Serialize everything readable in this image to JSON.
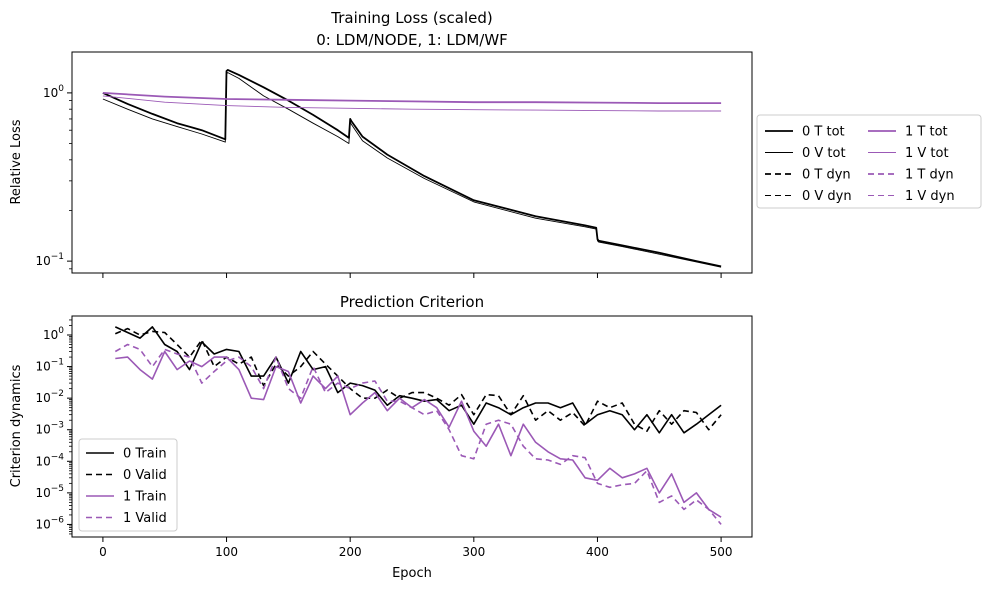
{
  "colors": {
    "black": "#000000",
    "purple": "#9b59b6",
    "axes": "#000000",
    "background": "#ffffff"
  },
  "chart_data": [
    {
      "type": "line",
      "title": "Training Loss (scaled)",
      "subtitle": "0: LDM/NODE, 1: LDM/WF",
      "xlabel": "",
      "ylabel": "Relative Loss",
      "yscale": "log",
      "xlim": [
        -25,
        525
      ],
      "ylim": [
        0.085,
        1.75
      ],
      "x_ticks": [
        0,
        100,
        200,
        300,
        400,
        500
      ],
      "x_tick_labels_shown": false,
      "y_ticks": [
        1,
        0.1
      ],
      "y_tick_labels": [
        "10^0",
        "10^-1"
      ],
      "grid": false,
      "legend": {
        "placement": "outside-right",
        "columns": 2
      },
      "series": [
        {
          "name": "0 T tot",
          "color": "#000000",
          "style": "solid",
          "width": 1.8,
          "x": [
            0,
            20,
            40,
            60,
            80,
            99,
            100,
            101,
            110,
            130,
            150,
            170,
            190,
            199,
            200,
            201,
            210,
            230,
            260,
            300,
            350,
            390,
            399,
            400,
            401,
            420,
            450,
            480,
            500
          ],
          "y": [
            1.0,
            0.86,
            0.75,
            0.66,
            0.6,
            0.53,
            1.35,
            1.37,
            1.28,
            1.08,
            0.9,
            0.74,
            0.6,
            0.54,
            0.7,
            0.68,
            0.55,
            0.43,
            0.32,
            0.23,
            0.185,
            0.163,
            0.158,
            0.135,
            0.132,
            0.124,
            0.112,
            0.1,
            0.093
          ]
        },
        {
          "name": "0 V tot",
          "color": "#000000",
          "style": "solid",
          "width": 0.9,
          "x": [
            0,
            20,
            40,
            60,
            80,
            99,
            100,
            101,
            110,
            130,
            150,
            170,
            190,
            199,
            200,
            201,
            210,
            230,
            260,
            300,
            350,
            390,
            399,
            400,
            401,
            420,
            450,
            480,
            500
          ],
          "y": [
            0.92,
            0.8,
            0.7,
            0.63,
            0.57,
            0.51,
            1.3,
            1.32,
            1.22,
            0.96,
            0.8,
            0.66,
            0.55,
            0.5,
            0.67,
            0.65,
            0.52,
            0.41,
            0.31,
            0.225,
            0.18,
            0.16,
            0.155,
            0.132,
            0.13,
            0.122,
            0.11,
            0.099,
            0.092
          ]
        },
        {
          "name": "0 T dyn",
          "color": "#000000",
          "style": "dashed",
          "width": 1.8,
          "x": [],
          "y": []
        },
        {
          "name": "0 V dyn",
          "color": "#000000",
          "style": "dashed",
          "width": 0.9,
          "x": [],
          "y": []
        },
        {
          "name": "1 T tot",
          "color": "#9b59b6",
          "style": "solid",
          "width": 1.8,
          "x": [
            0,
            50,
            100,
            150,
            200,
            250,
            300,
            350,
            400,
            450,
            500
          ],
          "y": [
            1.0,
            0.95,
            0.92,
            0.91,
            0.9,
            0.89,
            0.88,
            0.88,
            0.875,
            0.87,
            0.87
          ]
        },
        {
          "name": "1 V tot",
          "color": "#9b59b6",
          "style": "solid",
          "width": 0.9,
          "x": [
            0,
            50,
            100,
            150,
            200,
            250,
            300,
            350,
            400,
            450,
            500
          ],
          "y": [
            0.96,
            0.88,
            0.84,
            0.82,
            0.81,
            0.8,
            0.795,
            0.79,
            0.785,
            0.78,
            0.78
          ]
        },
        {
          "name": "1 T dyn",
          "color": "#9b59b6",
          "style": "dashed",
          "width": 1.8,
          "x": [],
          "y": []
        },
        {
          "name": "1 V dyn",
          "color": "#9b59b6",
          "style": "dashed",
          "width": 0.9,
          "x": [],
          "y": []
        }
      ]
    },
    {
      "type": "line",
      "title": "Prediction Criterion",
      "xlabel": "Epoch",
      "ylabel": "Criterion dynamics",
      "yscale": "log",
      "xlim": [
        -25,
        525
      ],
      "ylim": [
        4e-07,
        4
      ],
      "x_ticks": [
        0,
        100,
        200,
        300,
        400,
        500
      ],
      "x_tick_labels": [
        "0",
        "100",
        "200",
        "300",
        "400",
        "500"
      ],
      "y_ticks": [
        1,
        0.1,
        0.01,
        0.001,
        0.0001,
        1e-05,
        1e-06
      ],
      "y_tick_labels": [
        "10^0",
        "10^-1",
        "10^-2",
        "10^-3",
        "10^-4",
        "10^-5",
        "10^-6"
      ],
      "grid": false,
      "legend": {
        "placement": "lower-left",
        "columns": 1
      },
      "series": [
        {
          "name": "0 Train",
          "color": "#000000",
          "style": "solid",
          "width": 1.6,
          "x": [
            10,
            20,
            30,
            40,
            50,
            60,
            70,
            80,
            90,
            100,
            110,
            120,
            130,
            140,
            150,
            160,
            170,
            180,
            190,
            200,
            210,
            220,
            230,
            240,
            250,
            260,
            270,
            280,
            290,
            300,
            310,
            320,
            330,
            340,
            350,
            360,
            370,
            380,
            390,
            400,
            410,
            420,
            430,
            440,
            450,
            460,
            470,
            480,
            490,
            500
          ],
          "y": [
            1.8,
            1.2,
            0.8,
            1.8,
            0.5,
            0.3,
            0.08,
            0.6,
            0.25,
            0.35,
            0.3,
            0.05,
            0.05,
            0.2,
            0.03,
            0.3,
            0.08,
            0.1,
            0.015,
            0.03,
            0.025,
            0.018,
            0.006,
            0.012,
            0.01,
            0.008,
            0.009,
            0.004,
            0.006,
            0.0015,
            0.007,
            0.005,
            0.003,
            0.005,
            0.007,
            0.007,
            0.005,
            0.007,
            0.0015,
            0.003,
            0.004,
            0.003,
            0.001,
            0.003,
            0.0008,
            0.003,
            0.0008,
            0.0015,
            0.003,
            0.006
          ]
        },
        {
          "name": "0 Valid",
          "color": "#000000",
          "style": "dashed",
          "width": 1.6,
          "x": [
            10,
            20,
            30,
            40,
            50,
            60,
            70,
            80,
            90,
            100,
            110,
            120,
            130,
            140,
            150,
            160,
            170,
            180,
            190,
            200,
            210,
            220,
            230,
            240,
            250,
            260,
            270,
            280,
            290,
            300,
            310,
            320,
            330,
            340,
            350,
            360,
            370,
            380,
            390,
            400,
            410,
            420,
            430,
            440,
            450,
            460,
            470,
            480,
            490,
            500
          ],
          "y": [
            1.1,
            1.6,
            1.0,
            1.3,
            1.2,
            0.5,
            0.2,
            0.7,
            0.1,
            0.2,
            0.12,
            0.2,
            0.025,
            0.12,
            0.05,
            0.1,
            0.3,
            0.12,
            0.05,
            0.02,
            0.01,
            0.01,
            0.018,
            0.01,
            0.015,
            0.015,
            0.01,
            0.006,
            0.013,
            0.003,
            0.013,
            0.012,
            0.003,
            0.012,
            0.002,
            0.004,
            0.002,
            0.0035,
            0.0013,
            0.008,
            0.005,
            0.007,
            0.0015,
            0.0009,
            0.004,
            0.0015,
            0.004,
            0.0035,
            0.001,
            0.003
          ]
        },
        {
          "name": "1 Train",
          "color": "#9b59b6",
          "style": "solid",
          "width": 1.6,
          "x": [
            10,
            20,
            30,
            40,
            50,
            60,
            70,
            80,
            90,
            100,
            110,
            120,
            130,
            140,
            150,
            160,
            170,
            180,
            190,
            200,
            210,
            220,
            230,
            240,
            250,
            260,
            270,
            280,
            290,
            300,
            310,
            320,
            330,
            340,
            350,
            360,
            370,
            380,
            390,
            400,
            410,
            420,
            430,
            440,
            450,
            460,
            470,
            480,
            490,
            500
          ],
          "y": [
            0.18,
            0.2,
            0.08,
            0.04,
            0.3,
            0.08,
            0.15,
            0.1,
            0.2,
            0.2,
            0.08,
            0.01,
            0.009,
            0.1,
            0.07,
            0.007,
            0.05,
            0.02,
            0.05,
            0.003,
            0.007,
            0.015,
            0.004,
            0.01,
            0.005,
            0.009,
            0.005,
            0.0012,
            0.008,
            0.0009,
            0.0003,
            0.0015,
            0.00015,
            0.0015,
            0.0004,
            0.0002,
            0.00012,
            0.00011,
            3e-05,
            2.5e-05,
            6e-05,
            3e-05,
            4e-05,
            6e-05,
            1e-05,
            4e-05,
            5e-06,
            1e-05,
            3e-06,
            1.7e-06
          ]
        },
        {
          "name": "1 Valid",
          "color": "#9b59b6",
          "style": "dashed",
          "width": 1.6,
          "x": [
            10,
            20,
            30,
            40,
            50,
            60,
            70,
            80,
            90,
            100,
            110,
            120,
            130,
            140,
            150,
            160,
            170,
            180,
            190,
            200,
            210,
            220,
            230,
            240,
            250,
            260,
            270,
            280,
            290,
            300,
            310,
            320,
            330,
            340,
            350,
            360,
            370,
            380,
            390,
            400,
            410,
            420,
            430,
            440,
            450,
            460,
            470,
            480,
            490,
            500
          ],
          "y": [
            0.3,
            0.5,
            0.35,
            0.1,
            0.35,
            0.25,
            0.2,
            0.03,
            0.07,
            0.15,
            0.2,
            0.1,
            0.02,
            0.2,
            0.02,
            0.01,
            0.1,
            0.015,
            0.03,
            0.02,
            0.03,
            0.035,
            0.008,
            0.008,
            0.005,
            0.003,
            0.004,
            0.001,
            0.00015,
            0.00012,
            0.0015,
            0.002,
            0.0015,
            0.0003,
            0.00012,
            0.00011,
            8e-05,
            0.00015,
            0.00013,
            2e-05,
            1.5e-05,
            1.8e-05,
            2e-05,
            5e-05,
            5e-06,
            8e-06,
            3e-06,
            6e-06,
            3e-06,
            1e-06
          ]
        }
      ]
    }
  ]
}
